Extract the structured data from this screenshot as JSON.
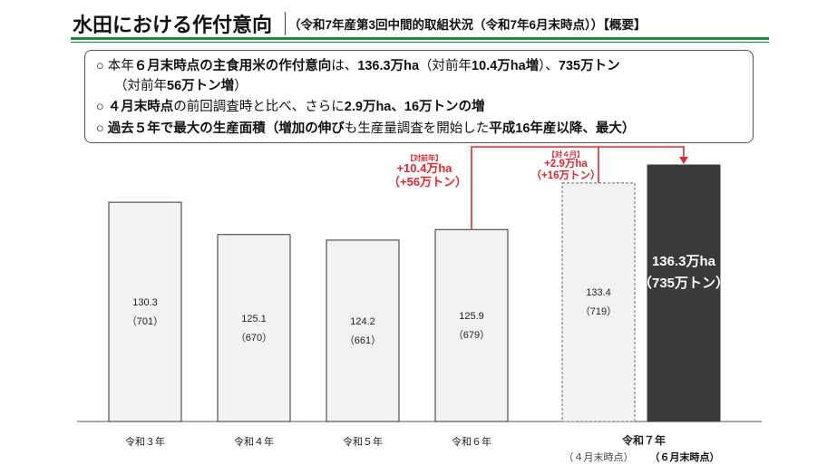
{
  "header": {
    "title": "水田における作付意向",
    "subtitle": "（令和7年産第3回中間的取組状況（令和7年6月末時点））【概要】"
  },
  "summary": {
    "line1_a": "○  本年",
    "line1_b": "６月末時点の主食用米の作付意向",
    "line1_c": "は、",
    "line1_d": "136.3万ha",
    "line1_e": "（対前年",
    "line1_f": "10.4万ha増",
    "line1_g": "）、",
    "line1_h": "735万トン",
    "line2_a": "（対前年",
    "line2_b": "56万トン増",
    "line2_c": "）",
    "line3_a": "○  ",
    "line3_b": "４月末時点",
    "line3_c": "の前回調査時と比べ、さらに",
    "line3_d": "2.9万ha、16万トンの増",
    "line4_a": "○  ",
    "line4_b": "過去５年で最大の生産面積（増加の伸び",
    "line4_c": "も生産量調査を開始した",
    "line4_d": "平成16年産以降、最大）"
  },
  "annotations": {
    "yoy": {
      "tag": "【対前年】",
      "area": "+10.4万ha",
      "volume": "（+56万トン）"
    },
    "vs_april": {
      "tag": "【対４月】",
      "area": "+2.9万ha",
      "volume": "（+16万トン）"
    }
  },
  "colors": {
    "bar_fill": "#f2f2f2",
    "bar_border": "#333333",
    "bar_dark": "#3a3a3a",
    "accent_red": "#e0282e",
    "header_green": "#1e8a3c"
  },
  "chart_data": {
    "type": "bar",
    "title": "",
    "xlabel": "",
    "ylabel": "",
    "categories": [
      "令和３年",
      "令和４年",
      "令和５年",
      "令和６年",
      "令和７年（４月末時点）",
      "令和７年（６月末時点）"
    ],
    "values": [
      130.3,
      125.1,
      124.2,
      125.9,
      133.4,
      136.3
    ],
    "volumes": [
      701,
      670,
      661,
      679,
      719,
      735
    ],
    "value_labels": [
      "130.3",
      "125.1",
      "124.2",
      "125.9",
      "133.4",
      "136.3万ha"
    ],
    "volume_labels": [
      "（701）",
      "（670）",
      "（661）",
      "（679）",
      "（719）",
      "（735万トン）"
    ],
    "axis_labels": [
      "令和３年",
      "令和４年",
      "令和５年",
      "令和６年",
      "令和７年"
    ],
    "sublabels": [
      "（４月末時点）",
      "（６月末時点）"
    ],
    "ylim": [
      95,
      140
    ],
    "grid": false,
    "legend": "none"
  }
}
